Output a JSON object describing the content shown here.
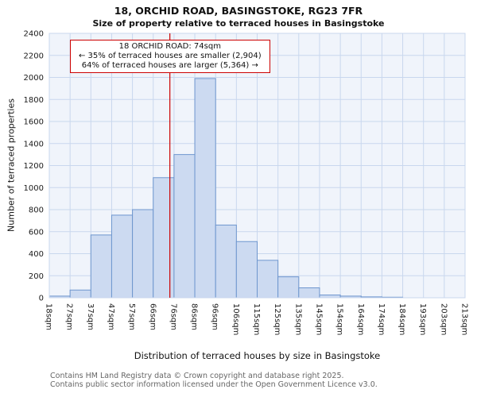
{
  "chart_data": {
    "type": "bar",
    "title": "18, ORCHID ROAD, BASINGSTOKE, RG23 7FR",
    "subtitle": "Size of property relative to terraced houses in Basingstoke",
    "xlabel": "Distribution of terraced houses by size in Basingstoke",
    "ylabel": "Number of terraced properties",
    "ylim": [
      0,
      2400
    ],
    "ytick_step": 200,
    "yticks": [
      "0",
      "200",
      "400",
      "600",
      "800",
      "1000",
      "1200",
      "1400",
      "1600",
      "1800",
      "2000",
      "2200",
      "2400"
    ],
    "categories": [
      "18sqm",
      "27sqm",
      "37sqm",
      "47sqm",
      "57sqm",
      "66sqm",
      "76sqm",
      "86sqm",
      "96sqm",
      "106sqm",
      "115sqm",
      "125sqm",
      "135sqm",
      "145sqm",
      "154sqm",
      "164sqm",
      "174sqm",
      "184sqm",
      "193sqm",
      "203sqm",
      "213sqm"
    ],
    "bin_edges": [
      18,
      27,
      37,
      47,
      57,
      66,
      76,
      86,
      96,
      106,
      115,
      125,
      135,
      145,
      154,
      164,
      174,
      184,
      193,
      203,
      213
    ],
    "values": [
      15,
      70,
      570,
      750,
      800,
      1090,
      1300,
      1990,
      660,
      510,
      340,
      190,
      90,
      25,
      15,
      8,
      5,
      0,
      0,
      0
    ],
    "marker": {
      "value": 74,
      "label": "74sqm"
    },
    "annotation": {
      "line1": "18 ORCHID ROAD: 74sqm",
      "line2": "← 35% of terraced houses are smaller (2,904)",
      "line3": "64% of terraced houses are larger (5,364) →"
    },
    "grid": true,
    "legend": false,
    "colors": {
      "plot_bg": "#f0f4fb",
      "grid": "#c9d7ee",
      "bar_fill": "#ccdaf1",
      "bar_border": "#6e96ce",
      "marker_line": "#cc0000",
      "annotation_border": "#cc0000",
      "axis_text": "#1a1a1a"
    }
  },
  "footer": {
    "line1": "Contains HM Land Registry data © Crown copyright and database right 2025.",
    "line2": "Contains public sector information licensed under the Open Government Licence v3.0."
  }
}
